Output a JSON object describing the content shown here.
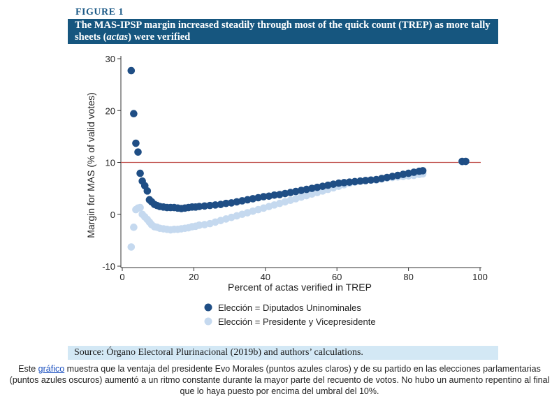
{
  "figure_label": "FIGURE 1",
  "title": {
    "part1": "The MAS-IPSP margin increased steadily through most of the quick count (TREP) as more tally sheets (",
    "italic": "actas",
    "part2": ") were verified"
  },
  "source": "Source: Órgano Electoral Plurinacional (2019b) and authors’ calculations.",
  "caption": {
    "before": "Este ",
    "link": "gráfico",
    "after": " muestra que la ventaja del presidente Evo Morales (puntos azules claros) y de su partido en las elecciones parlamentarias (puntos azules oscuros) aumentó a un ritmo constante durante la mayor parte del recuento de votos. No hubo un aumento repentino al final que lo haya puesto por encima del umbral del 10%."
  },
  "colors": {
    "title_bg": "#16567f",
    "dark_series": "#1f4e85",
    "light_series": "#c5d9ef",
    "threshold_line": "#c0504d",
    "source_bg": "#d3e8f5"
  },
  "chart_data": {
    "type": "scatter",
    "xlabel": "Percent of actas verified in TREP",
    "ylabel": "Margin for MAS (% of valid votes)",
    "xlim": [
      0,
      100
    ],
    "ylim": [
      -10,
      30
    ],
    "xticks": [
      0,
      20,
      40,
      60,
      80,
      100
    ],
    "yticks": [
      -10,
      0,
      10,
      20,
      30
    ],
    "hline": 10,
    "legend_position": "bottom",
    "series": [
      {
        "name": "Elección = Diputados Uninominales",
        "color": "#1f4e85",
        "x": [
          2.5,
          3.2,
          3.8,
          4.4,
          5.0,
          5.6,
          6.3,
          7.0,
          7.6,
          8.2,
          9.0,
          9.7,
          10.5,
          11.5,
          12.5,
          13.5,
          14.5,
          15.5,
          16.5,
          17.5,
          18.5,
          19.5,
          20.5,
          21.5,
          23,
          24.5,
          26,
          27.5,
          29,
          30.5,
          32,
          33.5,
          35,
          36.5,
          38,
          39.5,
          41,
          42.5,
          44,
          45.5,
          47,
          48.5,
          50,
          51.5,
          53,
          54.5,
          56,
          57.5,
          59,
          60.5,
          62,
          63.5,
          65,
          66.5,
          68,
          69.5,
          71,
          72.5,
          74,
          75.5,
          77,
          78.5,
          80,
          81.5,
          83,
          84,
          95,
          96
        ],
        "y": [
          27.7,
          19.4,
          13.7,
          12.0,
          7.9,
          6.4,
          5.5,
          4.5,
          2.8,
          2.4,
          1.9,
          1.7,
          1.5,
          1.4,
          1.3,
          1.3,
          1.3,
          1.2,
          1.1,
          1.2,
          1.3,
          1.4,
          1.4,
          1.5,
          1.6,
          1.7,
          1.8,
          1.9,
          2.1,
          2.2,
          2.4,
          2.6,
          2.8,
          3.0,
          3.2,
          3.4,
          3.5,
          3.7,
          3.8,
          4.0,
          4.2,
          4.4,
          4.6,
          4.8,
          5.0,
          5.2,
          5.4,
          5.6,
          5.8,
          6.0,
          6.1,
          6.2,
          6.3,
          6.4,
          6.5,
          6.6,
          6.7,
          6.9,
          7.1,
          7.3,
          7.5,
          7.7,
          7.9,
          8.1,
          8.3,
          8.4,
          10.2,
          10.2
        ]
      },
      {
        "name": "Elección = Presidente y Vicepresidente",
        "color": "#c5d9ef",
        "x": [
          2.5,
          3.2,
          3.8,
          4.4,
          5.0,
          5.6,
          6.3,
          7.0,
          7.6,
          8.2,
          9.0,
          9.7,
          10.5,
          11.5,
          12.5,
          13.5,
          14.5,
          15.5,
          16.5,
          17.5,
          18.5,
          19.5,
          20.5,
          21.5,
          23,
          24.5,
          26,
          27.5,
          29,
          30.5,
          32,
          33.5,
          35,
          36.5,
          38,
          39.5,
          41,
          42.5,
          44,
          45.5,
          47,
          48.5,
          50,
          51.5,
          53,
          54.5,
          56,
          57.5,
          59,
          60.5,
          62,
          63.5,
          65,
          66.5,
          68,
          69.5,
          71,
          72.5,
          74,
          75.5,
          77,
          78.5,
          80,
          81.5,
          83,
          84,
          95,
          96
        ],
        "y": [
          -6.3,
          -2.5,
          0.9,
          1.2,
          1.3,
          0.0,
          -0.5,
          -1.0,
          -1.5,
          -2.0,
          -2.4,
          -2.5,
          -2.7,
          -2.8,
          -2.9,
          -3.0,
          -2.9,
          -2.9,
          -2.8,
          -2.7,
          -2.6,
          -2.4,
          -2.3,
          -2.1,
          -2.0,
          -1.8,
          -1.5,
          -1.2,
          -0.9,
          -0.6,
          -0.3,
          0.0,
          0.3,
          0.6,
          0.9,
          1.2,
          1.5,
          1.8,
          2.1,
          2.4,
          2.7,
          3.0,
          3.3,
          3.6,
          3.9,
          4.2,
          4.5,
          4.8,
          5.1,
          5.4,
          5.7,
          6.0,
          6.2,
          6.4,
          6.5,
          6.6,
          6.6,
          6.8,
          7.0,
          7.1,
          7.2,
          7.3,
          7.4,
          7.5,
          7.7,
          7.8,
          10.1,
          10.2
        ]
      }
    ]
  }
}
